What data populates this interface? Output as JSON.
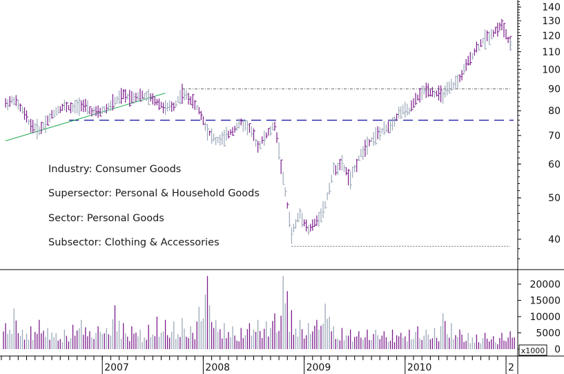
{
  "annotations": {
    "industry": "Industry: Consumer Goods",
    "supersector": "Supersector: Personal & Household Goods",
    "sector": "Sector: Personal Goods",
    "subsector": "Subsector: Clothing & Accessories"
  },
  "chart_data": {
    "type": "line",
    "title": "",
    "price_scale": "log",
    "grid": false,
    "price_axis": {
      "ticks": [
        40,
        50,
        60,
        70,
        80,
        90,
        100,
        110,
        120,
        130,
        140
      ],
      "tick_labels": [
        "40",
        "50",
        "60",
        "70",
        "80",
        "90",
        "100",
        "110",
        "120",
        "130",
        "140"
      ]
    },
    "volume_axis": {
      "ticks": [
        0,
        5000,
        10000,
        15000,
        20000
      ],
      "tick_labels": [
        "0",
        "5000",
        "10000",
        "15000",
        "20000"
      ],
      "unit_label": "x1000"
    },
    "x_axis": {
      "labels": [
        "2007",
        "2008",
        "2009",
        "2010",
        "2"
      ]
    },
    "series": [
      {
        "kind": "price_close",
        "color": "#7a1a8a",
        "points": [
          [
            "2006-01",
            83
          ],
          [
            "2006-02",
            85
          ],
          [
            "2006-03",
            80
          ],
          [
            "2006-04",
            74
          ],
          [
            "2006-05",
            72
          ],
          [
            "2006-06",
            76
          ],
          [
            "2006-07",
            80
          ],
          [
            "2006-08",
            82
          ],
          [
            "2006-09",
            81
          ],
          [
            "2006-10",
            83
          ],
          [
            "2006-11",
            80
          ],
          [
            "2006-12",
            79
          ],
          [
            "2007-01",
            81
          ],
          [
            "2007-02",
            84
          ],
          [
            "2007-03",
            87
          ],
          [
            "2007-04",
            86
          ],
          [
            "2007-05",
            87
          ],
          [
            "2007-06",
            86
          ],
          [
            "2007-07",
            84
          ],
          [
            "2007-08",
            81
          ],
          [
            "2007-09",
            82
          ],
          [
            "2007-10",
            88
          ],
          [
            "2007-11",
            85
          ],
          [
            "2007-12",
            80
          ],
          [
            "2008-01",
            72
          ],
          [
            "2008-02",
            68
          ],
          [
            "2008-03",
            69
          ],
          [
            "2008-04",
            72
          ],
          [
            "2008-05",
            75
          ],
          [
            "2008-06",
            73
          ],
          [
            "2008-07",
            66
          ],
          [
            "2008-08",
            70
          ],
          [
            "2008-09",
            74
          ],
          [
            "2008-10",
            55
          ],
          [
            "2008-11",
            41
          ],
          [
            "2008-12",
            46
          ],
          [
            "2009-01",
            42
          ],
          [
            "2009-02",
            44
          ],
          [
            "2009-03",
            48
          ],
          [
            "2009-04",
            58
          ],
          [
            "2009-05",
            60
          ],
          [
            "2009-06",
            55
          ],
          [
            "2009-07",
            62
          ],
          [
            "2009-08",
            67
          ],
          [
            "2009-09",
            70
          ],
          [
            "2009-10",
            72
          ],
          [
            "2009-11",
            75
          ],
          [
            "2009-12",
            80
          ],
          [
            "2010-01",
            80
          ],
          [
            "2010-02",
            86
          ],
          [
            "2010-03",
            90
          ],
          [
            "2010-04",
            88
          ],
          [
            "2010-05",
            87
          ],
          [
            "2010-06",
            91
          ],
          [
            "2010-07",
            95
          ],
          [
            "2010-08",
            104
          ],
          [
            "2010-09",
            112
          ],
          [
            "2010-10",
            118
          ],
          [
            "2010-11",
            122
          ],
          [
            "2010-12",
            127
          ],
          [
            "2011-01",
            114
          ]
        ]
      },
      {
        "kind": "volume_bars",
        "color_up": "#9aa7b8",
        "color_down": "#7a1a8a",
        "unit": "x1000",
        "values": [
          [
            "2006-01",
            8000
          ],
          [
            "2006-02",
            12500
          ],
          [
            "2006-03",
            6000
          ],
          [
            "2006-04",
            7000
          ],
          [
            "2006-05",
            9000
          ],
          [
            "2006-06",
            6500
          ],
          [
            "2006-07",
            5000
          ],
          [
            "2006-08",
            6000
          ],
          [
            "2006-09",
            7500
          ],
          [
            "2006-10",
            9000
          ],
          [
            "2006-11",
            5500
          ],
          [
            "2006-12",
            7000
          ],
          [
            "2007-01",
            6500
          ],
          [
            "2007-02",
            13500
          ],
          [
            "2007-03",
            8000
          ],
          [
            "2007-04",
            7000
          ],
          [
            "2007-05",
            6000
          ],
          [
            "2007-06",
            7500
          ],
          [
            "2007-07",
            10000
          ],
          [
            "2007-08",
            9000
          ],
          [
            "2007-09",
            8500
          ],
          [
            "2007-10",
            9500
          ],
          [
            "2007-11",
            7000
          ],
          [
            "2007-12",
            13000
          ],
          [
            "2008-01",
            22500
          ],
          [
            "2008-02",
            9000
          ],
          [
            "2008-03",
            8000
          ],
          [
            "2008-04",
            7000
          ],
          [
            "2008-05",
            6500
          ],
          [
            "2008-06",
            8000
          ],
          [
            "2008-07",
            9000
          ],
          [
            "2008-08",
            8500
          ],
          [
            "2008-09",
            11000
          ],
          [
            "2008-10",
            22500
          ],
          [
            "2008-11",
            12000
          ],
          [
            "2008-12",
            9000
          ],
          [
            "2009-01",
            8000
          ],
          [
            "2009-02",
            9000
          ],
          [
            "2009-03",
            14000
          ],
          [
            "2009-04",
            7000
          ],
          [
            "2009-05",
            6500
          ],
          [
            "2009-06",
            6000
          ],
          [
            "2009-07",
            5500
          ],
          [
            "2009-08",
            6000
          ],
          [
            "2009-09",
            6000
          ],
          [
            "2009-10",
            5500
          ],
          [
            "2009-11",
            6000
          ],
          [
            "2009-12",
            5000
          ],
          [
            "2010-01",
            6000
          ],
          [
            "2010-02",
            7000
          ],
          [
            "2010-03",
            6000
          ],
          [
            "2010-04",
            6500
          ],
          [
            "2010-05",
            11000
          ],
          [
            "2010-06",
            8000
          ],
          [
            "2010-07",
            6000
          ],
          [
            "2010-08",
            5000
          ],
          [
            "2010-09",
            4500
          ],
          [
            "2010-10",
            5000
          ],
          [
            "2010-11",
            4000
          ],
          [
            "2010-12",
            5000
          ],
          [
            "2011-01",
            5500
          ]
        ]
      },
      {
        "kind": "support_line_dashed",
        "color": "#1a1aa8",
        "value": 76
      },
      {
        "kind": "resistance_line_dotted",
        "color": "#666666",
        "value": 90,
        "from": "2007-10",
        "to": "2011-01"
      },
      {
        "kind": "low_line_dotted",
        "color": "#666666",
        "value": 38.5,
        "from": "2008-11",
        "to": "2011-01"
      },
      {
        "kind": "trendline",
        "color": "#22aa55",
        "points": [
          [
            "2006-01",
            68
          ],
          [
            "2007-08",
            88
          ]
        ]
      }
    ]
  }
}
